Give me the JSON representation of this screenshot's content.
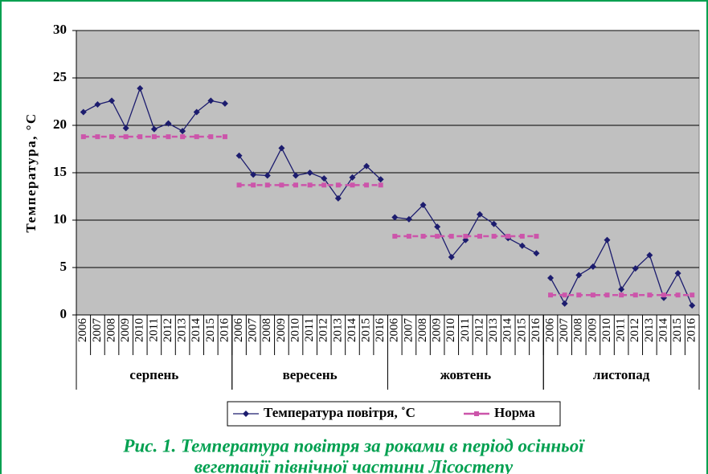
{
  "chart_data": {
    "type": "line",
    "y_label": "Температура, °C",
    "categories": [
      "2006",
      "2007",
      "2008",
      "2009",
      "2010",
      "2011",
      "2012",
      "2013",
      "2014",
      "2015",
      "2016",
      "2006",
      "2007",
      "2008",
      "2009",
      "2010",
      "2011",
      "2012",
      "2013",
      "2014",
      "2015",
      "2016",
      "2006",
      "2007",
      "2008",
      "2009",
      "2010",
      "2011",
      "2012",
      "2013",
      "2014",
      "2015",
      "2016",
      "2006",
      "2007",
      "2008",
      "2009",
      "2010",
      "2011",
      "2012",
      "2013",
      "2014",
      "2015",
      "2016"
    ],
    "groups": [
      "серпень",
      "вересень",
      "жовтень",
      "листопад"
    ],
    "series": [
      {
        "name": "Температура повітря, ˚C",
        "color": "#1c1c6e",
        "marker": "diamond",
        "values": [
          21.4,
          22.2,
          22.6,
          19.7,
          23.9,
          19.6,
          20.2,
          19.4,
          21.4,
          22.6,
          22.3,
          16.8,
          14.8,
          14.7,
          17.6,
          14.7,
          15.0,
          14.4,
          12.3,
          14.5,
          15.7,
          14.3,
          10.3,
          10.1,
          11.6,
          9.3,
          6.1,
          7.9,
          10.6,
          9.6,
          8.1,
          7.3,
          6.5,
          3.9,
          1.2,
          4.2,
          5.1,
          7.9,
          2.7,
          4.9,
          6.3,
          1.8,
          4.4,
          1.0
        ]
      },
      {
        "name": "Норма",
        "color": "#cc55aa",
        "marker": "square",
        "dashed": true,
        "values": [
          18.8,
          18.8,
          18.8,
          18.8,
          18.8,
          18.8,
          18.8,
          18.8,
          18.8,
          18.8,
          18.8,
          13.7,
          13.7,
          13.7,
          13.7,
          13.7,
          13.7,
          13.7,
          13.7,
          13.7,
          13.7,
          13.7,
          8.3,
          8.3,
          8.3,
          8.3,
          8.3,
          8.3,
          8.3,
          8.3,
          8.3,
          8.3,
          8.3,
          2.1,
          2.1,
          2.1,
          2.1,
          2.1,
          2.1,
          2.1,
          2.1,
          2.1,
          2.1,
          2.1
        ]
      }
    ],
    "ylim": [
      0,
      30
    ],
    "yticks": [
      0,
      5,
      10,
      15,
      20,
      25,
      30
    ],
    "grid": true,
    "caption": [
      "Рис. 1. Температура повітря за роками в період осінньої",
      "вегетації північної частини Лісостепу"
    ]
  }
}
